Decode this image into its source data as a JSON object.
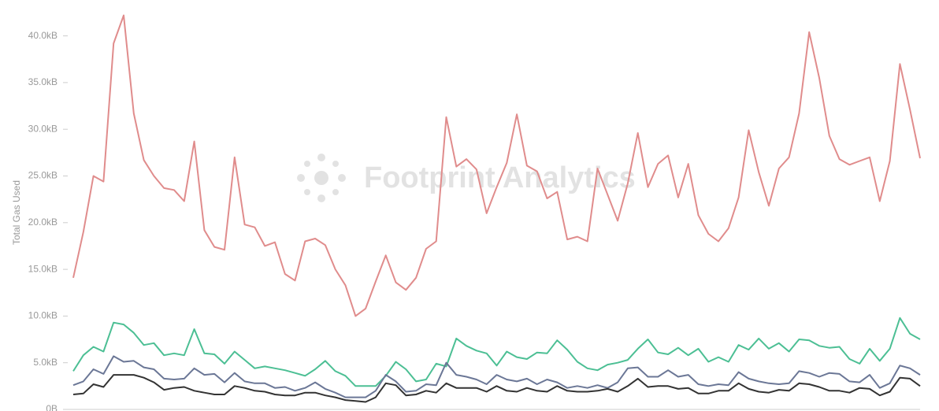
{
  "chart_data": {
    "type": "line",
    "y_label": "Total Gas Used",
    "watermark": "Footprint Analytics",
    "ylim": [
      0,
      43
    ],
    "yticks": [
      {
        "value": 0,
        "label": "0B"
      },
      {
        "value": 5,
        "label": "5.0kB"
      },
      {
        "value": 10,
        "label": "10.0kB"
      },
      {
        "value": 15,
        "label": "15.0kB"
      },
      {
        "value": 20,
        "label": "20.0kB"
      },
      {
        "value": 25,
        "label": "25.0kB"
      },
      {
        "value": 30,
        "label": "30.0kB"
      },
      {
        "value": 35,
        "label": "35.0kB"
      },
      {
        "value": 40,
        "label": "40.0kB"
      }
    ],
    "grid": false,
    "series": [
      {
        "color": "#e08c8c",
        "values": [
          14.1,
          19,
          25,
          24.4,
          39.2,
          42.2,
          31.7,
          26.7,
          25,
          23.7,
          23.5,
          22.3,
          28.7,
          19.2,
          17.4,
          17.1,
          27,
          19.8,
          19.5,
          17.5,
          17.9,
          14.5,
          13.8,
          18,
          18.3,
          17.6,
          15,
          13.3,
          10,
          10.8,
          13.7,
          16.5,
          13.6,
          12.8,
          14.1,
          17.2,
          18,
          31.3,
          26,
          26.8,
          25.7,
          21,
          23.8,
          26.4,
          31.6,
          26.1,
          25.5,
          22.6,
          23.3,
          18.2,
          18.5,
          18,
          25.8,
          23,
          20.2,
          24.2,
          29.6,
          23.8,
          26.3,
          27.2,
          22.7,
          26.3,
          20.8,
          18.8,
          18,
          19.4,
          22.7,
          29.9,
          25.4,
          21.8,
          25.8,
          27,
          31.7,
          40.4,
          35.5,
          29.3,
          26.8,
          26.2,
          26.6,
          27,
          22.3,
          26.6,
          37,
          32.1,
          26.9
        ]
      },
      {
        "color": "#4cbf94",
        "values": [
          4.1,
          5.8,
          6.7,
          6.2,
          9.3,
          9.1,
          8.2,
          6.9,
          7.1,
          5.8,
          6,
          5.8,
          8.6,
          6,
          5.9,
          4.9,
          6.2,
          5.3,
          4.4,
          4.6,
          4.4,
          4.2,
          3.9,
          3.6,
          4.3,
          5.2,
          4.1,
          3.6,
          2.5,
          2.5,
          2.5,
          3.6,
          5.1,
          4.3,
          3,
          3.2,
          4.9,
          4.6,
          7.6,
          6.8,
          6.3,
          6,
          4.7,
          6.2,
          5.6,
          5.4,
          6.1,
          6,
          7.4,
          6.4,
          5.1,
          4.4,
          4.2,
          4.8,
          5,
          5.3,
          6.5,
          7.5,
          6.1,
          5.9,
          6.6,
          5.8,
          6.5,
          5.1,
          5.6,
          5.1,
          6.9,
          6.4,
          7.6,
          6.5,
          7.1,
          6.2,
          7.5,
          7.4,
          6.8,
          6.6,
          6.7,
          5.4,
          4.9,
          6.5,
          5.2,
          6.5,
          9.8,
          8.1,
          7.5
        ]
      },
      {
        "color": "#6b7796",
        "values": [
          2.6,
          3,
          4.3,
          3.8,
          5.7,
          5.1,
          5.2,
          4.5,
          4.3,
          3.3,
          3.2,
          3.3,
          4.4,
          3.7,
          3.8,
          2.9,
          3.9,
          3,
          2.8,
          2.8,
          2.3,
          2.4,
          2,
          2.3,
          2.9,
          2.2,
          1.8,
          1.3,
          1.3,
          1.3,
          2,
          3.7,
          3,
          1.9,
          2,
          2.7,
          2.6,
          5,
          3.7,
          3.5,
          3.2,
          2.7,
          3.7,
          3.2,
          3,
          3.3,
          2.7,
          3.2,
          2.9,
          2.3,
          2.5,
          2.3,
          2.6,
          2.3,
          2.9,
          4.4,
          4.5,
          3.5,
          3.5,
          4.2,
          3.5,
          3.7,
          2.7,
          2.5,
          2.7,
          2.6,
          4,
          3.3,
          3,
          2.8,
          2.7,
          2.8,
          4.1,
          3.9,
          3.5,
          3.9,
          3.8,
          3,
          2.9,
          3.7,
          2.3,
          2.8,
          4.7,
          4.4,
          3.7
        ]
      },
      {
        "color": "#333333",
        "values": [
          1.6,
          1.7,
          2.7,
          2.4,
          3.7,
          3.7,
          3.7,
          3.4,
          2.9,
          2.1,
          2.3,
          2.4,
          2,
          1.8,
          1.6,
          1.6,
          2.5,
          2.3,
          2,
          1.9,
          1.6,
          1.5,
          1.5,
          1.8,
          1.8,
          1.5,
          1.3,
          1,
          0.9,
          0.8,
          1.3,
          2.8,
          2.6,
          1.5,
          1.6,
          2,
          1.8,
          2.8,
          2.3,
          2.3,
          2.3,
          1.9,
          2.5,
          2,
          1.9,
          2.3,
          2,
          1.9,
          2.5,
          2,
          1.9,
          1.9,
          2,
          2.2,
          1.9,
          2.5,
          3.3,
          2.4,
          2.5,
          2.5,
          2.2,
          2.3,
          1.7,
          1.7,
          2,
          2,
          2.8,
          2.2,
          1.9,
          1.8,
          2.1,
          2,
          2.8,
          2.7,
          2.4,
          2,
          2,
          1.8,
          2.3,
          2.2,
          1.5,
          1.9,
          3.4,
          3.3,
          2.5
        ]
      }
    ]
  }
}
